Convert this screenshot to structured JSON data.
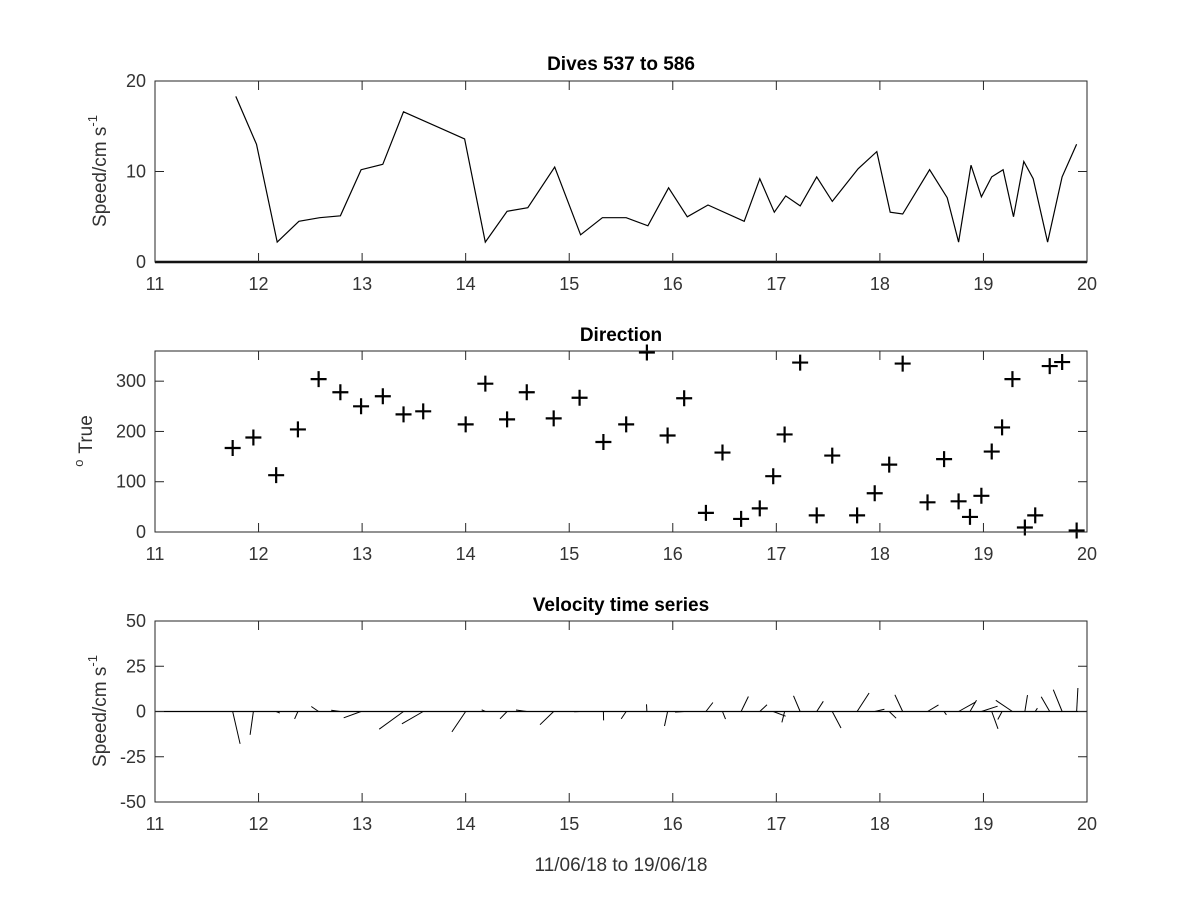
{
  "chart_data": [
    {
      "type": "line",
      "title": "Dives 537 to 586",
      "ylabel": {
        "text": "Speed/cm s",
        "sup": "-1"
      },
      "xlim": [
        11,
        20
      ],
      "ylim": [
        0,
        20
      ],
      "xticks": [
        11,
        12,
        13,
        14,
        15,
        16,
        17,
        18,
        19,
        20
      ],
      "yticks": [
        0,
        10,
        20
      ],
      "grid": false,
      "series": [
        {
          "color": "#000000",
          "x": [
            11.78,
            11.98,
            12.18,
            12.39,
            12.59,
            12.79,
            12.99,
            13.2,
            13.4,
            13.99,
            14.19,
            14.4,
            14.6,
            14.86,
            15.11,
            15.32,
            15.55,
            15.76,
            15.96,
            16.14,
            16.34,
            16.69,
            16.84,
            16.98,
            17.09,
            17.23,
            17.39,
            17.54,
            17.79,
            17.97,
            18.1,
            18.22,
            18.48,
            18.65,
            18.76,
            18.88,
            18.98,
            19.08,
            19.19,
            19.29,
            19.39,
            19.48,
            19.62,
            19.76,
            19.9
          ],
          "values": [
            18.3,
            13,
            2.2,
            4.5,
            4.9,
            5.1,
            10.2,
            10.8,
            16.6,
            13.6,
            2.2,
            5.6,
            6,
            10.5,
            3,
            4.9,
            4.9,
            4,
            8.2,
            5,
            6.3,
            4.5,
            9.2,
            5.5,
            7.3,
            6.2,
            9.4,
            6.7,
            10.3,
            12.2,
            5.5,
            5.3,
            10.2,
            7.1,
            2.2,
            10.7,
            7.2,
            9.4,
            10.2,
            5,
            11.1,
            9.2,
            2.2,
            9.4,
            13
          ]
        }
      ]
    },
    {
      "type": "scatter",
      "title": "Direction",
      "ylabel": {
        "text": "True",
        "pre": "o"
      },
      "xlim": [
        11,
        20
      ],
      "ylim": [
        0,
        360
      ],
      "xticks": [
        11,
        12,
        13,
        14,
        15,
        16,
        17,
        18,
        19,
        20
      ],
      "yticks": [
        0,
        100,
        200,
        300
      ],
      "marker": "+",
      "grid": false,
      "series": [
        {
          "color": "#000000",
          "x": [
            11.75,
            11.95,
            12.17,
            12.38,
            12.58,
            12.79,
            12.99,
            13.2,
            13.4,
            13.59,
            14,
            14.19,
            14.4,
            14.59,
            14.85,
            15.1,
            15.33,
            15.55,
            15.75,
            15.95,
            16.11,
            16.32,
            16.48,
            16.66,
            16.84,
            16.97,
            17.08,
            17.23,
            17.39,
            17.54,
            17.78,
            17.95,
            18.09,
            18.22,
            18.46,
            18.62,
            18.76,
            18.87,
            18.98,
            19.08,
            19.18,
            19.28,
            19.4,
            19.5,
            19.64,
            19.76,
            19.9
          ],
          "values": [
            167,
            188,
            113,
            204,
            304,
            278,
            250,
            270,
            234,
            240,
            214,
            295,
            224,
            278,
            226,
            267,
            179,
            214,
            357,
            192,
            266,
            38,
            158,
            26,
            47,
            111,
            194,
            337,
            33,
            152,
            33,
            77,
            134,
            335,
            59,
            145,
            61,
            30,
            72,
            160,
            208,
            304,
            9,
            33,
            330,
            338,
            3
          ]
        }
      ]
    },
    {
      "type": "quiver",
      "title": "Velocity time series",
      "ylabel": {
        "text": "Speed/cm s",
        "sup": "-1"
      },
      "xlabel": "11/06/18 to 19/06/18",
      "xlim": [
        11,
        20
      ],
      "ylim": [
        -50,
        50
      ],
      "xticks": [
        11,
        12,
        13,
        14,
        15,
        16,
        17,
        18,
        19,
        20
      ],
      "yticks": [
        -50,
        -25,
        0,
        25,
        50
      ],
      "grid": false,
      "description_note": "",
      "vectors": {
        "x": [
          11.75,
          11.95,
          12.17,
          12.38,
          12.58,
          12.79,
          12.99,
          13.2,
          13.4,
          13.59,
          14,
          14.19,
          14.4,
          14.59,
          14.85,
          15.1,
          15.33,
          15.55,
          15.75,
          15.95,
          16.11,
          16.32,
          16.48,
          16.66,
          16.84,
          16.97,
          17.08,
          17.23,
          17.39,
          17.54,
          17.78,
          17.95,
          18.09,
          18.22,
          18.46,
          18.62,
          18.76,
          18.87,
          18.98,
          19.08,
          19.18,
          19.28,
          19.4,
          19.5,
          19.64,
          19.76,
          19.9
        ],
        "speed": [
          18.3,
          13,
          2.2,
          4.5,
          4.9,
          5.1,
          10.2,
          10.8,
          16.6,
          13.6,
          13.6,
          2.2,
          5.6,
          6,
          10.5,
          3,
          4.9,
          4.9,
          4,
          8.2,
          5,
          6.3,
          4.5,
          9.2,
          5.5,
          7.3,
          6.2,
          9.4,
          6.7,
          10.3,
          12.2,
          5.5,
          5.3,
          10.2,
          7.1,
          2.2,
          10.7,
          7.2,
          9.4,
          10.2,
          5,
          11.1,
          9.2,
          2.2,
          9.4,
          13,
          13
        ],
        "direction_deg_true": [
          167,
          188,
          113,
          204,
          304,
          278,
          250,
          270,
          234,
          240,
          214,
          295,
          224,
          278,
          226,
          267,
          179,
          214,
          357,
          192,
          266,
          38,
          158,
          26,
          47,
          111,
          194,
          337,
          33,
          152,
          33,
          77,
          134,
          335,
          59,
          145,
          61,
          30,
          72,
          160,
          208,
          304,
          9,
          33,
          330,
          338,
          3
        ]
      }
    }
  ]
}
